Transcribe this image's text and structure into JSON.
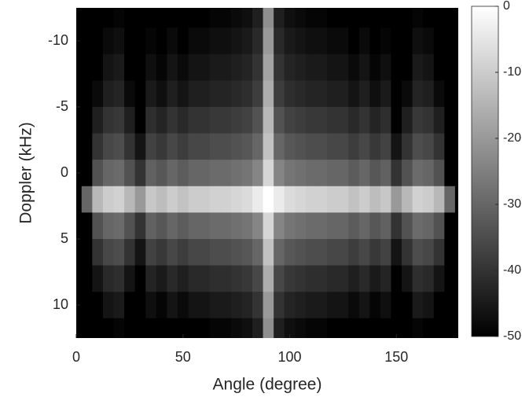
{
  "chart_data": {
    "type": "heatmap",
    "colormap": "gray",
    "xlabel": "Angle (degree)",
    "ylabel": "Doppler (kHz)",
    "x": [
      0,
      5,
      10,
      15,
      20,
      25,
      30,
      35,
      40,
      45,
      50,
      55,
      60,
      65,
      70,
      75,
      80,
      85,
      90,
      95,
      100,
      105,
      110,
      115,
      120,
      125,
      130,
      135,
      140,
      145,
      150,
      155,
      160,
      165,
      170,
      175,
      180
    ],
    "y": [
      -12,
      -10,
      -8,
      -6,
      -4,
      -2,
      0,
      2,
      4,
      6,
      8,
      10,
      12
    ],
    "values": [
      [
        -50,
        -50,
        -50,
        -50,
        -49,
        -50,
        -50,
        -50,
        -50,
        -50,
        -50,
        -50,
        -50,
        -49,
        -49,
        -48,
        -47,
        -44,
        -22,
        -44,
        -47,
        -48,
        -49,
        -49,
        -50,
        -50,
        -50,
        -50,
        -50,
        -50,
        -50,
        -50,
        -49,
        -50,
        -50,
        -50,
        -50
      ],
      [
        -50,
        -50,
        -50,
        -48,
        -47,
        -50,
        -50,
        -49,
        -50,
        -48,
        -50,
        -48,
        -48,
        -47,
        -47,
        -46,
        -45,
        -42,
        -20,
        -42,
        -45,
        -46,
        -47,
        -47,
        -48,
        -48,
        -50,
        -48,
        -50,
        -49,
        -50,
        -50,
        -47,
        -48,
        -50,
        -50,
        -50
      ],
      [
        -50,
        -50,
        -50,
        -46,
        -45,
        -50,
        -50,
        -47,
        -49,
        -46,
        -48,
        -46,
        -46,
        -45,
        -45,
        -44,
        -43,
        -40,
        -18,
        -40,
        -43,
        -44,
        -45,
        -45,
        -46,
        -46,
        -48,
        -46,
        -49,
        -47,
        -50,
        -50,
        -45,
        -46,
        -50,
        -50,
        -50
      ],
      [
        -50,
        -50,
        -48,
        -44,
        -43,
        -48,
        -50,
        -45,
        -47,
        -44,
        -46,
        -44,
        -44,
        -43,
        -43,
        -42,
        -41,
        -38,
        -16,
        -38,
        -41,
        -42,
        -43,
        -43,
        -44,
        -44,
        -46,
        -44,
        -47,
        -45,
        -50,
        -48,
        -43,
        -44,
        -48,
        -50,
        -50
      ],
      [
        -50,
        -50,
        -44,
        -40,
        -39,
        -44,
        -50,
        -41,
        -43,
        -40,
        -42,
        -40,
        -40,
        -39,
        -39,
        -38,
        -37,
        -34,
        -14,
        -34,
        -37,
        -38,
        -39,
        -39,
        -40,
        -40,
        -42,
        -40,
        -43,
        -41,
        -50,
        -44,
        -39,
        -40,
        -44,
        -50,
        -50
      ],
      [
        -50,
        -50,
        -40,
        -36,
        -35,
        -40,
        -46,
        -37,
        -39,
        -36,
        -38,
        -36,
        -36,
        -35,
        -35,
        -34,
        -33,
        -30,
        -12,
        -30,
        -33,
        -34,
        -35,
        -35,
        -36,
        -36,
        -38,
        -36,
        -39,
        -37,
        -46,
        -40,
        -35,
        -36,
        -40,
        -50,
        -50
      ],
      [
        -50,
        -50,
        -34,
        -30,
        -29,
        -34,
        -40,
        -31,
        -33,
        -30,
        -32,
        -30,
        -30,
        -29,
        -29,
        -28,
        -27,
        -24,
        -8,
        -24,
        -27,
        -28,
        -29,
        -29,
        -30,
        -30,
        -32,
        -30,
        -33,
        -31,
        -40,
        -34,
        -29,
        -30,
        -34,
        -50,
        -50
      ],
      [
        -50,
        -30,
        -14,
        -10,
        -9,
        -14,
        -20,
        -11,
        -13,
        -10,
        -12,
        -10,
        -10,
        -9,
        -9,
        -8,
        -7,
        -4,
        0,
        -4,
        -7,
        -8,
        -9,
        -9,
        -10,
        -10,
        -12,
        -10,
        -13,
        -11,
        -20,
        -14,
        -9,
        -10,
        -14,
        -30,
        -50
      ],
      [
        -50,
        -50,
        -34,
        -30,
        -29,
        -34,
        -40,
        -31,
        -33,
        -30,
        -32,
        -30,
        -30,
        -29,
        -29,
        -28,
        -27,
        -24,
        -8,
        -24,
        -27,
        -28,
        -29,
        -29,
        -30,
        -30,
        -32,
        -30,
        -33,
        -31,
        -40,
        -34,
        -29,
        -30,
        -34,
        -50,
        -50
      ],
      [
        -50,
        -50,
        -40,
        -36,
        -35,
        -40,
        -46,
        -37,
        -39,
        -36,
        -38,
        -36,
        -36,
        -35,
        -35,
        -34,
        -33,
        -30,
        -12,
        -30,
        -33,
        -34,
        -35,
        -35,
        -36,
        -36,
        -38,
        -36,
        -39,
        -37,
        -46,
        -40,
        -35,
        -36,
        -40,
        -50,
        -50
      ],
      [
        -50,
        -50,
        -46,
        -42,
        -41,
        -46,
        -50,
        -43,
        -45,
        -42,
        -44,
        -42,
        -42,
        -41,
        -41,
        -40,
        -39,
        -36,
        -16,
        -36,
        -39,
        -40,
        -41,
        -41,
        -42,
        -42,
        -44,
        -42,
        -45,
        -43,
        -50,
        -46,
        -41,
        -42,
        -46,
        -50,
        -50
      ],
      [
        -50,
        -50,
        -50,
        -46,
        -45,
        -50,
        -50,
        -47,
        -49,
        -46,
        -48,
        -46,
        -46,
        -45,
        -45,
        -44,
        -43,
        -40,
        -20,
        -40,
        -43,
        -44,
        -45,
        -45,
        -46,
        -46,
        -48,
        -46,
        -49,
        -47,
        -50,
        -50,
        -45,
        -46,
        -50,
        -50,
        -50
      ],
      [
        -50,
        -50,
        -50,
        -50,
        -49,
        -50,
        -50,
        -50,
        -50,
        -50,
        -50,
        -50,
        -50,
        -49,
        -49,
        -48,
        -47,
        -44,
        -22,
        -44,
        -47,
        -48,
        -49,
        -49,
        -50,
        -50,
        -50,
        -50,
        -50,
        -50,
        -50,
        -50,
        -49,
        -50,
        -50,
        -50,
        -50
      ]
    ],
    "xlim": [
      0,
      179
    ],
    "ylim": [
      12.5,
      -12.5
    ],
    "xticks": [
      0,
      50,
      100,
      150
    ],
    "yticks": [
      -10,
      -5,
      0,
      5,
      10
    ],
    "clim": [
      -50,
      0
    ],
    "cticks": [
      0,
      -10,
      -20,
      -30,
      -40,
      -50
    ]
  }
}
